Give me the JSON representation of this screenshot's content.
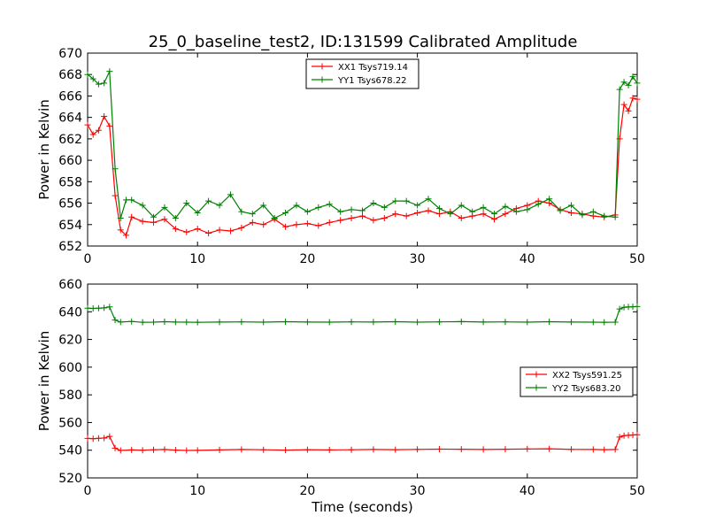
{
  "title": "25_0_baseline_test2, ID:131599 Calibrated Amplitude",
  "colors": {
    "xx": "#ff0000",
    "yy": "#008000",
    "axis": "#000000",
    "bg": "#ffffff"
  },
  "chart_data": [
    {
      "type": "line",
      "title": "25_0_baseline_test2, ID:131599 Calibrated Amplitude",
      "xlabel": "",
      "ylabel": "Power in Kelvin",
      "xlim": [
        0,
        50
      ],
      "ylim": [
        652,
        670
      ],
      "xticks": [
        0,
        10,
        20,
        30,
        40,
        50
      ],
      "yticks": [
        652,
        654,
        656,
        658,
        660,
        662,
        664,
        666,
        668,
        670
      ],
      "grid": false,
      "legend_position": "upper-center",
      "series": [
        {
          "name": "XX1 Tsys719.14",
          "color": "#ff0000",
          "marker": "+",
          "x": [
            0.0,
            0.5,
            1.0,
            1.5,
            2.0,
            2.5,
            3.0,
            3.5,
            4.0,
            5.0,
            6.0,
            7.0,
            8.0,
            9.0,
            10.0,
            11.0,
            12.0,
            13.0,
            14.0,
            15.0,
            16.0,
            17.0,
            18.0,
            19.0,
            20.0,
            21.0,
            22.0,
            23.0,
            24.0,
            25.0,
            26.0,
            27.0,
            28.0,
            29.0,
            30.0,
            31.0,
            32.0,
            33.0,
            34.0,
            35.0,
            36.0,
            37.0,
            38.0,
            39.0,
            40.0,
            41.0,
            42.0,
            43.0,
            44.0,
            45.0,
            46.0,
            47.0,
            48.0,
            48.4,
            48.8,
            49.2,
            49.6,
            50.0
          ],
          "y": [
            663.3,
            662.4,
            662.8,
            664.1,
            663.2,
            656.7,
            653.5,
            653.0,
            654.7,
            654.3,
            654.2,
            654.5,
            653.6,
            653.3,
            653.6,
            653.2,
            653.5,
            653.4,
            653.7,
            654.2,
            654.0,
            654.5,
            653.8,
            654.0,
            654.1,
            653.9,
            654.2,
            654.4,
            654.6,
            654.8,
            654.4,
            654.6,
            655.0,
            654.8,
            655.1,
            655.3,
            655.0,
            655.2,
            654.6,
            654.8,
            655.0,
            654.5,
            655.0,
            655.5,
            655.8,
            656.2,
            656.0,
            655.4,
            655.1,
            655.0,
            654.8,
            654.7,
            654.9,
            662.0,
            665.2,
            664.6,
            665.8,
            665.7
          ]
        },
        {
          "name": "YY1 Tsys678.22",
          "color": "#008000",
          "marker": "+",
          "x": [
            0.0,
            0.5,
            1.0,
            1.5,
            2.0,
            2.5,
            3.0,
            3.5,
            4.0,
            5.0,
            6.0,
            7.0,
            8.0,
            9.0,
            10.0,
            11.0,
            12.0,
            13.0,
            14.0,
            15.0,
            16.0,
            17.0,
            18.0,
            19.0,
            20.0,
            21.0,
            22.0,
            23.0,
            24.0,
            25.0,
            26.0,
            27.0,
            28.0,
            29.0,
            30.0,
            31.0,
            32.0,
            33.0,
            34.0,
            35.0,
            36.0,
            37.0,
            38.0,
            39.0,
            40.0,
            41.0,
            42.0,
            43.0,
            44.0,
            45.0,
            46.0,
            47.0,
            48.0,
            48.4,
            48.8,
            49.2,
            49.6,
            50.0
          ],
          "y": [
            668.0,
            667.6,
            667.1,
            667.2,
            668.3,
            659.2,
            654.6,
            656.3,
            656.3,
            655.8,
            654.7,
            655.6,
            654.6,
            656.0,
            655.1,
            656.2,
            655.8,
            656.8,
            655.2,
            655.0,
            655.8,
            654.6,
            655.1,
            655.8,
            655.2,
            655.6,
            655.9,
            655.2,
            655.4,
            655.3,
            656.0,
            655.6,
            656.2,
            656.2,
            655.8,
            656.4,
            655.5,
            655.0,
            655.8,
            655.2,
            655.6,
            655.0,
            655.7,
            655.2,
            655.4,
            655.9,
            656.4,
            655.3,
            655.8,
            654.9,
            655.2,
            654.8,
            654.7,
            666.6,
            667.3,
            667.0,
            667.8,
            667.2
          ]
        }
      ]
    },
    {
      "type": "line",
      "title": "",
      "xlabel": "Time (seconds)",
      "ylabel": "Power in Kelvin",
      "xlim": [
        0,
        50
      ],
      "ylim": [
        520,
        660
      ],
      "xticks": [
        0,
        10,
        20,
        30,
        40,
        50
      ],
      "yticks": [
        520,
        540,
        560,
        580,
        600,
        620,
        640,
        660
      ],
      "grid": false,
      "legend_position": "center-right",
      "series": [
        {
          "name": "XX2 Tsys591.25",
          "color": "#ff0000",
          "marker": "+",
          "x": [
            0.0,
            0.5,
            1.0,
            1.5,
            2.0,
            2.5,
            3.0,
            4.0,
            5.0,
            6.0,
            7.0,
            8.0,
            9.0,
            10.0,
            12.0,
            14.0,
            16.0,
            18.0,
            20.0,
            22.0,
            24.0,
            26.0,
            28.0,
            30.0,
            32.0,
            34.0,
            36.0,
            38.0,
            40.0,
            42.0,
            44.0,
            46.0,
            47.0,
            48.0,
            48.4,
            48.8,
            49.2,
            49.6,
            50.0
          ],
          "y": [
            548.5,
            548.3,
            548.6,
            548.8,
            550.0,
            541.5,
            539.8,
            540.2,
            540.0,
            540.3,
            540.5,
            540.1,
            539.8,
            539.9,
            540.2,
            540.5,
            540.3,
            540.1,
            540.4,
            540.2,
            540.3,
            540.5,
            540.4,
            540.6,
            540.8,
            540.7,
            540.5,
            540.7,
            540.9,
            541.0,
            540.6,
            540.5,
            540.4,
            540.5,
            549.5,
            550.5,
            550.8,
            551.0,
            551.2
          ]
        },
        {
          "name": "YY2 Tsys683.20",
          "color": "#008000",
          "marker": "+",
          "x": [
            0.0,
            0.5,
            1.0,
            1.5,
            2.0,
            2.5,
            3.0,
            4.0,
            5.0,
            6.0,
            7.0,
            8.0,
            9.0,
            10.0,
            12.0,
            14.0,
            16.0,
            18.0,
            20.0,
            22.0,
            24.0,
            26.0,
            28.0,
            30.0,
            32.0,
            34.0,
            36.0,
            38.0,
            40.0,
            42.0,
            44.0,
            46.0,
            47.0,
            48.0,
            48.4,
            48.8,
            49.2,
            49.6,
            50.0
          ],
          "y": [
            642.6,
            642.4,
            642.6,
            642.8,
            643.5,
            634.0,
            632.6,
            633.0,
            632.4,
            632.5,
            632.8,
            632.6,
            632.5,
            632.4,
            632.6,
            632.7,
            632.5,
            632.8,
            632.6,
            632.5,
            632.7,
            632.6,
            632.8,
            632.5,
            632.7,
            632.9,
            632.6,
            632.7,
            632.5,
            632.8,
            632.6,
            632.5,
            632.4,
            632.5,
            642.0,
            643.2,
            643.5,
            643.6,
            643.8
          ]
        }
      ]
    }
  ]
}
